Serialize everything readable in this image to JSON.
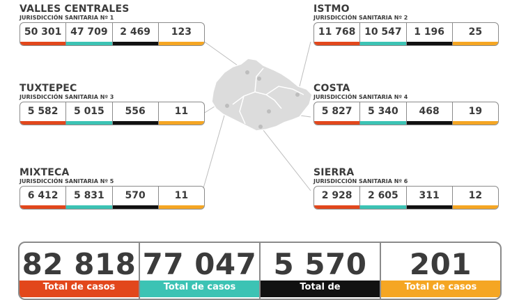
{
  "colors": {
    "red": "#e2471c",
    "teal": "#3cc3b4",
    "black": "#111111",
    "orange": "#f5a623",
    "border": "#8a8a8a",
    "map": "#dcdcdc"
  },
  "regions": [
    {
      "name": "VALLES CENTRALES",
      "sub": "JURISDICCIÓN SANITARIA Nº 1",
      "values": [
        "50 301",
        "47 709",
        "2 469",
        "123"
      ]
    },
    {
      "name": "ISTMO",
      "sub": "JURISDICCIÓN SANITARIA Nº 2",
      "values": [
        "11 768",
        "10 547",
        "1 196",
        "25"
      ]
    },
    {
      "name": "TUXTEPEC",
      "sub": "JURISDICCIÓN SANITARIA Nº 3",
      "values": [
        "5 582",
        "5 015",
        "556",
        "11"
      ]
    },
    {
      "name": "COSTA",
      "sub": "JURISDICCIÓN SANITARIA Nº 4",
      "values": [
        "5 827",
        "5 340",
        "468",
        "19"
      ]
    },
    {
      "name": "MIXTECA",
      "sub": "JURISDICCIÓN SANITARIA Nº 5",
      "values": [
        "6 412",
        "5 831",
        "570",
        "11"
      ]
    },
    {
      "name": "SIERRA",
      "sub": "JURISDICCIÓN SANITARIA Nº 6",
      "values": [
        "2 928",
        "2 605",
        "311",
        "12"
      ]
    }
  ],
  "totals": [
    {
      "value": "82 818",
      "label": "Total de casos"
    },
    {
      "value": "77 047",
      "label": "Total de casos"
    },
    {
      "value": "5 570",
      "label": "Total de"
    },
    {
      "value": "201",
      "label": "Total de casos"
    }
  ]
}
